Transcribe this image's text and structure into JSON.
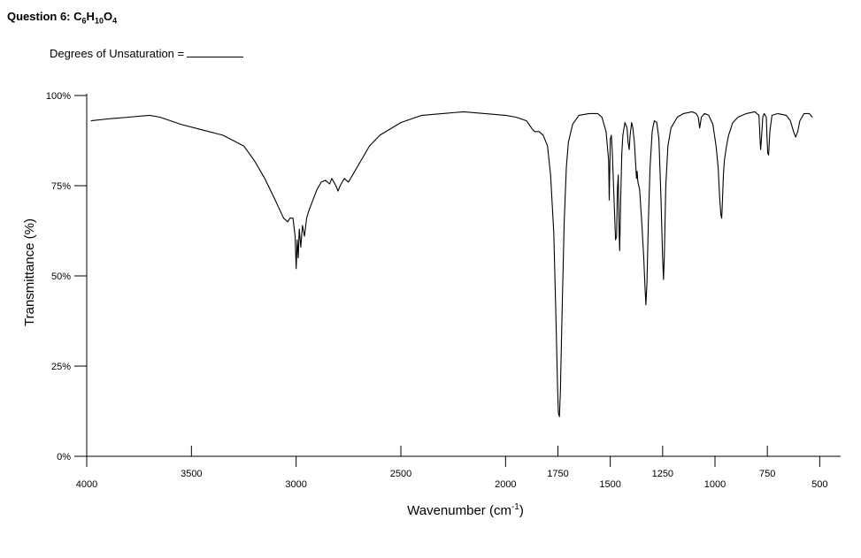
{
  "question": {
    "label": "Question 6:",
    "formula_parts": [
      {
        "t": "C",
        "sub": "6"
      },
      {
        "t": "H",
        "sub": "10"
      },
      {
        "t": "O",
        "sub": "4"
      }
    ]
  },
  "degrees_label": "Degrees of Unsaturation =",
  "chart_data": {
    "type": "line",
    "title": "",
    "xlabel": "Wavenumber (cm",
    "xlabel_sup": "-1",
    "xlabel_close": ")",
    "ylabel": "Transmittance (%)",
    "xlim": [
      4000,
      400
    ],
    "ylim": [
      0,
      100
    ],
    "x_ticks": [
      {
        "v": 4000,
        "label": "4000"
      },
      {
        "v": 3500,
        "label": "3500"
      },
      {
        "v": 3000,
        "label": "3000"
      },
      {
        "v": 2500,
        "label": "2500"
      },
      {
        "v": 2000,
        "label": "2000"
      },
      {
        "v": 1750,
        "label": "1750"
      },
      {
        "v": 1500,
        "label": "1500"
      },
      {
        "v": 1250,
        "label": "1250"
      },
      {
        "v": 1000,
        "label": "1000"
      },
      {
        "v": 750,
        "label": "750"
      },
      {
        "v": 500,
        "label": "500"
      }
    ],
    "y_ticks": [
      {
        "v": 100,
        "label": "100%"
      },
      {
        "v": 75,
        "label": "75%"
      },
      {
        "v": 50,
        "label": "50%"
      },
      {
        "v": 25,
        "label": "25%"
      },
      {
        "v": 0,
        "label": "0%"
      }
    ],
    "series": [
      {
        "color": "#000000",
        "points": [
          [
            3980,
            93
          ],
          [
            3900,
            93.5
          ],
          [
            3800,
            94
          ],
          [
            3700,
            94.5
          ],
          [
            3650,
            94
          ],
          [
            3550,
            92
          ],
          [
            3450,
            90.5
          ],
          [
            3350,
            89
          ],
          [
            3250,
            86
          ],
          [
            3200,
            82
          ],
          [
            3150,
            77
          ],
          [
            3100,
            71
          ],
          [
            3060,
            66
          ],
          [
            3040,
            65
          ],
          [
            3030,
            66
          ],
          [
            3015,
            66
          ],
          [
            3005,
            61
          ],
          [
            3000,
            52
          ],
          [
            2995,
            60
          ],
          [
            2990,
            55
          ],
          [
            2985,
            63
          ],
          [
            2978,
            58
          ],
          [
            2970,
            64
          ],
          [
            2960,
            61
          ],
          [
            2950,
            66
          ],
          [
            2940,
            68
          ],
          [
            2920,
            71
          ],
          [
            2900,
            74
          ],
          [
            2880,
            76
          ],
          [
            2860,
            76.5
          ],
          [
            2840,
            75.5
          ],
          [
            2830,
            77
          ],
          [
            2810,
            75
          ],
          [
            2800,
            73.5
          ],
          [
            2790,
            75
          ],
          [
            2770,
            77
          ],
          [
            2750,
            76
          ],
          [
            2720,
            79
          ],
          [
            2700,
            81
          ],
          [
            2650,
            86
          ],
          [
            2600,
            89
          ],
          [
            2500,
            92.5
          ],
          [
            2400,
            94.5
          ],
          [
            2300,
            95
          ],
          [
            2200,
            95.5
          ],
          [
            2100,
            95
          ],
          [
            2000,
            94.5
          ],
          [
            1950,
            94
          ],
          [
            1900,
            93
          ],
          [
            1870,
            90.5
          ],
          [
            1860,
            90
          ],
          [
            1840,
            90
          ],
          [
            1820,
            89
          ],
          [
            1800,
            86
          ],
          [
            1785,
            78
          ],
          [
            1770,
            62
          ],
          [
            1760,
            40
          ],
          [
            1752,
            20
          ],
          [
            1748,
            12
          ],
          [
            1743,
            11
          ],
          [
            1738,
            18
          ],
          [
            1730,
            40
          ],
          [
            1720,
            65
          ],
          [
            1710,
            80
          ],
          [
            1700,
            87
          ],
          [
            1680,
            92
          ],
          [
            1650,
            94.5
          ],
          [
            1600,
            95
          ],
          [
            1560,
            95
          ],
          [
            1540,
            94
          ],
          [
            1520,
            90
          ],
          [
            1508,
            82
          ],
          [
            1505,
            71
          ],
          [
            1500,
            88
          ],
          [
            1495,
            89
          ],
          [
            1490,
            84
          ],
          [
            1485,
            76
          ],
          [
            1480,
            68
          ],
          [
            1475,
            60
          ],
          [
            1470,
            61
          ],
          [
            1466,
            74
          ],
          [
            1462,
            78
          ],
          [
            1458,
            63
          ],
          [
            1455,
            57
          ],
          [
            1450,
            72
          ],
          [
            1445,
            84
          ],
          [
            1440,
            89
          ],
          [
            1430,
            92.5
          ],
          [
            1420,
            91
          ],
          [
            1415,
            87
          ],
          [
            1410,
            85
          ],
          [
            1405,
            89
          ],
          [
            1398,
            92.5
          ],
          [
            1392,
            91
          ],
          [
            1385,
            87
          ],
          [
            1380,
            82
          ],
          [
            1375,
            77
          ],
          [
            1372,
            79
          ],
          [
            1368,
            76
          ],
          [
            1360,
            74
          ],
          [
            1350,
            65
          ],
          [
            1340,
            55
          ],
          [
            1335,
            48
          ],
          [
            1330,
            42
          ],
          [
            1325,
            48
          ],
          [
            1318,
            65
          ],
          [
            1310,
            80
          ],
          [
            1300,
            90
          ],
          [
            1290,
            93
          ],
          [
            1278,
            92.5
          ],
          [
            1268,
            88
          ],
          [
            1258,
            72
          ],
          [
            1250,
            55
          ],
          [
            1246,
            49
          ],
          [
            1242,
            55
          ],
          [
            1235,
            75
          ],
          [
            1225,
            86
          ],
          [
            1210,
            91
          ],
          [
            1180,
            94
          ],
          [
            1150,
            95
          ],
          [
            1110,
            95.5
          ],
          [
            1090,
            95
          ],
          [
            1080,
            94
          ],
          [
            1073,
            91
          ],
          [
            1065,
            94
          ],
          [
            1050,
            95
          ],
          [
            1030,
            94.5
          ],
          [
            1010,
            92
          ],
          [
            995,
            86
          ],
          [
            985,
            80
          ],
          [
            978,
            72
          ],
          [
            972,
            67
          ],
          [
            968,
            66
          ],
          [
            965,
            70
          ],
          [
            960,
            78
          ],
          [
            955,
            82
          ],
          [
            950,
            84
          ],
          [
            945,
            86
          ],
          [
            935,
            89
          ],
          [
            915,
            92.5
          ],
          [
            890,
            94
          ],
          [
            850,
            95
          ],
          [
            810,
            95.5
          ],
          [
            790,
            94.5
          ],
          [
            785,
            88
          ],
          [
            782,
            85
          ],
          [
            778,
            88
          ],
          [
            772,
            94
          ],
          [
            765,
            95
          ],
          [
            755,
            94
          ],
          [
            752,
            89
          ],
          [
            748,
            84
          ],
          [
            744,
            83.5
          ],
          [
            738,
            90
          ],
          [
            728,
            94.5
          ],
          [
            700,
            95
          ],
          [
            660,
            94.5
          ],
          [
            640,
            93
          ],
          [
            625,
            90
          ],
          [
            615,
            88.5
          ],
          [
            605,
            90
          ],
          [
            595,
            93
          ],
          [
            575,
            95
          ],
          [
            550,
            95
          ],
          [
            535,
            94
          ]
        ]
      }
    ]
  }
}
